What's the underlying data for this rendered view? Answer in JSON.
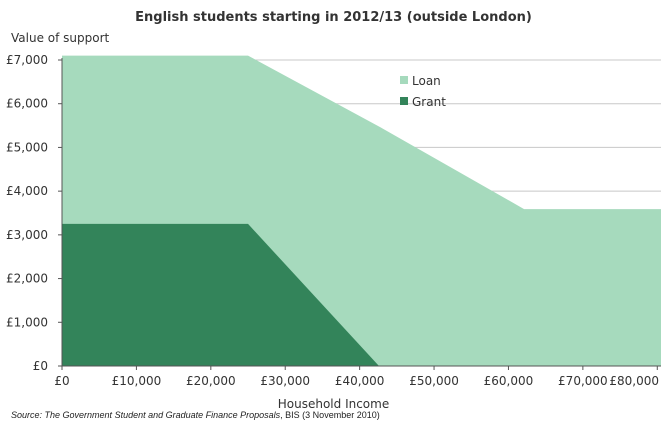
{
  "chart_data": {
    "type": "area",
    "title": "English students starting in 2012/13 (outside London)",
    "xlabel": "Household Income",
    "ylabel": "Value of support",
    "xlim": [
      0,
      80500
    ],
    "ylim": [
      0,
      7000
    ],
    "x_ticks": [
      0,
      10000,
      20000,
      30000,
      40000,
      50000,
      60000,
      70000,
      80000
    ],
    "x_tick_labels": [
      "£0",
      "£10,000",
      "£20,000",
      "£30,000",
      "£40,000",
      "£50,000",
      "£60,000",
      "£70,000",
      "£80,000"
    ],
    "y_ticks": [
      0,
      1000,
      2000,
      3000,
      4000,
      5000,
      6000,
      7000
    ],
    "y_tick_labels": [
      "£0",
      "£1,000",
      "£2,000",
      "£3,000",
      "£4,000",
      "£5,000",
      "£6,000",
      "£7,000"
    ],
    "grid": "horizontal",
    "legend_position": "top-center",
    "series": [
      {
        "name": "Loan",
        "color": "#a6dabd",
        "points": [
          [
            0,
            7100
          ],
          [
            25000,
            7100
          ],
          [
            42600,
            5480
          ],
          [
            62100,
            3590
          ],
          [
            80500,
            3590
          ]
        ]
      },
      {
        "name": "Grant",
        "color": "#33845a",
        "points": [
          [
            0,
            3250
          ],
          [
            25000,
            3250
          ],
          [
            42600,
            0
          ]
        ]
      }
    ]
  },
  "source": {
    "prefix": "Source: ",
    "title": "The Government Student and Graduate Finance Proposals",
    "suffix": ", BIS (3 November 2010)"
  }
}
